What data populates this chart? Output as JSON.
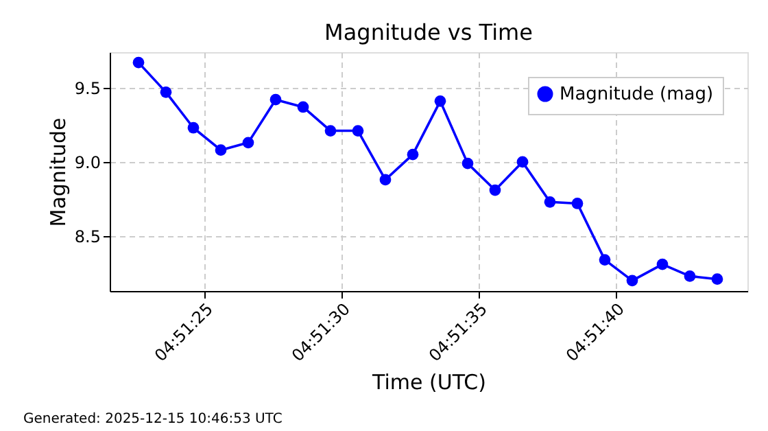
{
  "chart_data": {
    "type": "line",
    "title": "Magnitude vs Time",
    "xlabel": "Time (UTC)",
    "ylabel": "Magnitude",
    "x": [
      "2025-12-15T04:51:22.6",
      "2025-12-15T04:51:23.6",
      "2025-12-15T04:51:24.6",
      "2025-12-15T04:51:25.6",
      "2025-12-15T04:51:26.6",
      "2025-12-15T04:51:27.6",
      "2025-12-15T04:51:28.6",
      "2025-12-15T04:51:29.6",
      "2025-12-15T04:51:30.6",
      "2025-12-15T04:51:31.6",
      "2025-12-15T04:51:32.6",
      "2025-12-15T04:51:33.6",
      "2025-12-15T04:51:34.6",
      "2025-12-15T04:51:35.6",
      "2025-12-15T04:51:36.6",
      "2025-12-15T04:51:37.6",
      "2025-12-15T04:51:38.6",
      "2025-12-15T04:51:39.6",
      "2025-12-15T04:51:40.6",
      "2025-12-15T04:51:41.7",
      "2025-12-15T04:51:42.7",
      "2025-12-15T04:51:43.7"
    ],
    "series": [
      {
        "name": "Magnitude (mag)",
        "color": "#0000ff",
        "values": [
          9.67,
          9.47,
          9.23,
          9.08,
          9.13,
          9.42,
          9.37,
          9.21,
          9.21,
          8.88,
          9.05,
          9.41,
          8.99,
          8.81,
          9.0,
          8.73,
          8.72,
          8.34,
          8.2,
          8.31,
          8.23,
          8.21
        ]
      }
    ],
    "xlim": [
      "2025-12-15T04:51:21.55",
      "2025-12-15T04:51:44.8"
    ],
    "xticks": [
      {
        "value": "2025-12-15T04:51:25",
        "label": "04:51:25"
      },
      {
        "value": "2025-12-15T04:51:30",
        "label": "04:51:30"
      },
      {
        "value": "2025-12-15T04:51:35",
        "label": "04:51:35"
      },
      {
        "value": "2025-12-15T04:51:40",
        "label": "04:51:40"
      }
    ],
    "ylim": [
      8.13,
      9.74
    ],
    "yticks": [
      8.5,
      {
        "value": 9.0,
        "label": "9.0"
      },
      9.5
    ],
    "grid": true,
    "legend": "top right",
    "marker": "circle",
    "line_style": "solid",
    "annotations": [
      "Generated: 2025-12-15 10:46:53 UTC"
    ]
  }
}
